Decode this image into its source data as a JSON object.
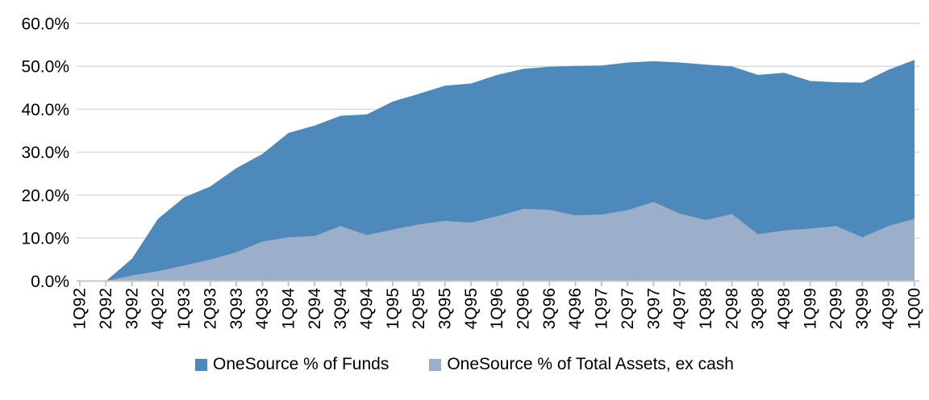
{
  "chart_data": {
    "type": "area",
    "mode": "overlapping",
    "title": "",
    "xlabel": "",
    "ylabel": "",
    "ylim": [
      0,
      60
    ],
    "grid": true,
    "legend_position": "bottom-center",
    "y_ticks": [
      "0.0%",
      "10.0%",
      "20.0%",
      "30.0%",
      "40.0%",
      "50.0%",
      "60.0%"
    ],
    "categories": [
      "1Q92",
      "2Q92",
      "3Q92",
      "4Q92",
      "1Q93",
      "2Q93",
      "3Q93",
      "4Q93",
      "1Q94",
      "2Q94",
      "3Q94",
      "4Q94",
      "1Q95",
      "2Q95",
      "3Q95",
      "4Q95",
      "1Q96",
      "2Q96",
      "3Q96",
      "4Q96",
      "1Q97",
      "2Q97",
      "3Q97",
      "4Q97",
      "1Q98",
      "2Q98",
      "3Q98",
      "4Q98",
      "1Q99",
      "2Q99",
      "3Q99",
      "4Q99",
      "1Q00"
    ],
    "series": [
      {
        "name": "OneSource % of Funds",
        "color": "#4E89BC",
        "values": [
          0.0,
          0.0,
          5.2,
          14.5,
          19.5,
          22.0,
          26.3,
          29.6,
          34.5,
          36.2,
          38.5,
          38.8,
          41.8,
          43.6,
          45.5,
          46.0,
          48.0,
          49.4,
          49.9,
          50.1,
          50.2,
          50.9,
          51.2,
          50.9,
          50.4,
          50.0,
          48.0,
          48.5,
          46.6,
          46.3,
          46.2,
          49.2,
          51.5
        ]
      },
      {
        "name": "OneSource % of Total Assets, ex cash",
        "color": "#9BAFCB",
        "values": [
          0.0,
          0.0,
          1.3,
          2.3,
          3.6,
          5.0,
          6.7,
          9.2,
          10.2,
          10.5,
          12.8,
          10.7,
          12.0,
          13.2,
          14.0,
          13.6,
          15.1,
          16.8,
          16.6,
          15.3,
          15.5,
          16.5,
          18.4,
          15.7,
          14.2,
          15.6,
          10.9,
          11.8,
          12.2,
          12.8,
          10.2,
          12.8,
          14.5
        ]
      }
    ],
    "colors": {
      "gridline": "#D9D9D9",
      "axis": "#C6C6C6",
      "tick": "#C6C6C6",
      "text": "#000000",
      "background": "#FFFFFF"
    }
  }
}
